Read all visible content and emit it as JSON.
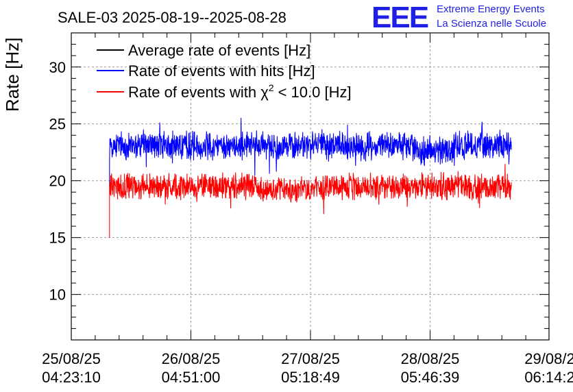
{
  "chart_data": {
    "type": "line",
    "title": "SALE-03 2025-08-19--2025-08-28",
    "ylabel": "Rate [Hz]",
    "xlabel": "",
    "ylim": [
      6,
      33
    ],
    "yticks": [
      10,
      15,
      20,
      25,
      30
    ],
    "x_range": [
      0,
      4
    ],
    "x_ticks": [
      {
        "pos": 0,
        "line1": "25/08/25",
        "line2": "04:23:10"
      },
      {
        "pos": 1,
        "line1": "26/08/25",
        "line2": "04:51:00"
      },
      {
        "pos": 2,
        "line1": "27/08/25",
        "line2": "05:18:49"
      },
      {
        "pos": 3,
        "line1": "28/08/25",
        "line2": "05:46:39"
      },
      {
        "pos": 4,
        "line1": "29/08/2",
        "line2": "06:14:2"
      }
    ],
    "legend": [
      {
        "name": "Average rate of events [Hz]",
        "color": "#000000"
      },
      {
        "name": "Rate of events with hits [Hz]",
        "color": "#0000ff"
      },
      {
        "name": "Rate of events with χ² < 10.0 [Hz]",
        "color": "#ff0000"
      }
    ],
    "legend_text": {
      "black": "Average rate of events [Hz]",
      "blue": "Rate of events with hits [Hz]",
      "red_prefix": "Rate of events with",
      "red_chi": "χ",
      "red_sup": "2",
      "red_suffix": "< 10.0 [Hz]"
    },
    "series": [
      {
        "name": "Rate of events with hits [Hz]",
        "color": "#0000ff",
        "x_start": 0.32,
        "x_end": 3.68,
        "start_spike": 19.5,
        "mean": 23.1,
        "noise": 1.0,
        "dip_region": [
          2.85,
          3.2
        ],
        "dip_mean": 22.7
      },
      {
        "name": "Rate of events with χ² < 10.0 [Hz]",
        "color": "#ff0000",
        "x_start": 0.32,
        "x_end": 3.68,
        "start_spike": 15.0,
        "mean": 19.5,
        "noise": 0.9,
        "dip_region": [
          1.55,
          2.1
        ],
        "dip_mean": 19.2
      }
    ]
  },
  "logo": {
    "mark": "EEE",
    "line1": "Extreme Energy Events",
    "line2": "La Scienza nelle Scuole"
  }
}
